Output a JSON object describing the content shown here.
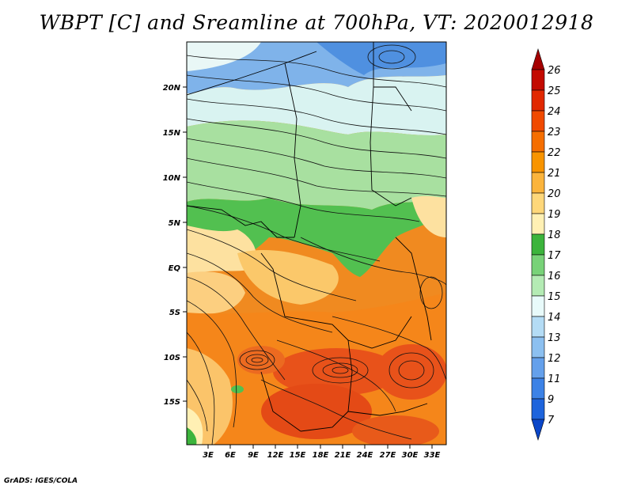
{
  "title": "WBPT [C] and Sreamline at 700hPa, VT: 2020012918",
  "footer": "GrADS: IGES/COLA",
  "map": {
    "lat_labels": [
      "20N",
      "15N",
      "10N",
      "5N",
      "EQ",
      "5S",
      "10S",
      "15S"
    ],
    "lon_labels": [
      "3E",
      "6E",
      "9E",
      "12E",
      "15E",
      "18E",
      "21E",
      "24E",
      "27E",
      "30E",
      "33E"
    ]
  },
  "colorbar": {
    "labels": [
      "26",
      "25",
      "24",
      "23",
      "22",
      "21",
      "20",
      "19",
      "18",
      "17",
      "16",
      "15",
      "14",
      "13",
      "12",
      "11",
      "9",
      "7"
    ],
    "colors": [
      "#a50000",
      "#c30a00",
      "#e12800",
      "#f04a00",
      "#f56e00",
      "#f89400",
      "#fbb43c",
      "#fed77a",
      "#fff0b4",
      "#3cb43c",
      "#78d278",
      "#b4ebb4",
      "#e8fafa",
      "#b4dcf5",
      "#8cc0f0",
      "#64a0eb",
      "#3c82e6",
      "#1e64dc",
      "#0a46c8"
    ]
  }
}
